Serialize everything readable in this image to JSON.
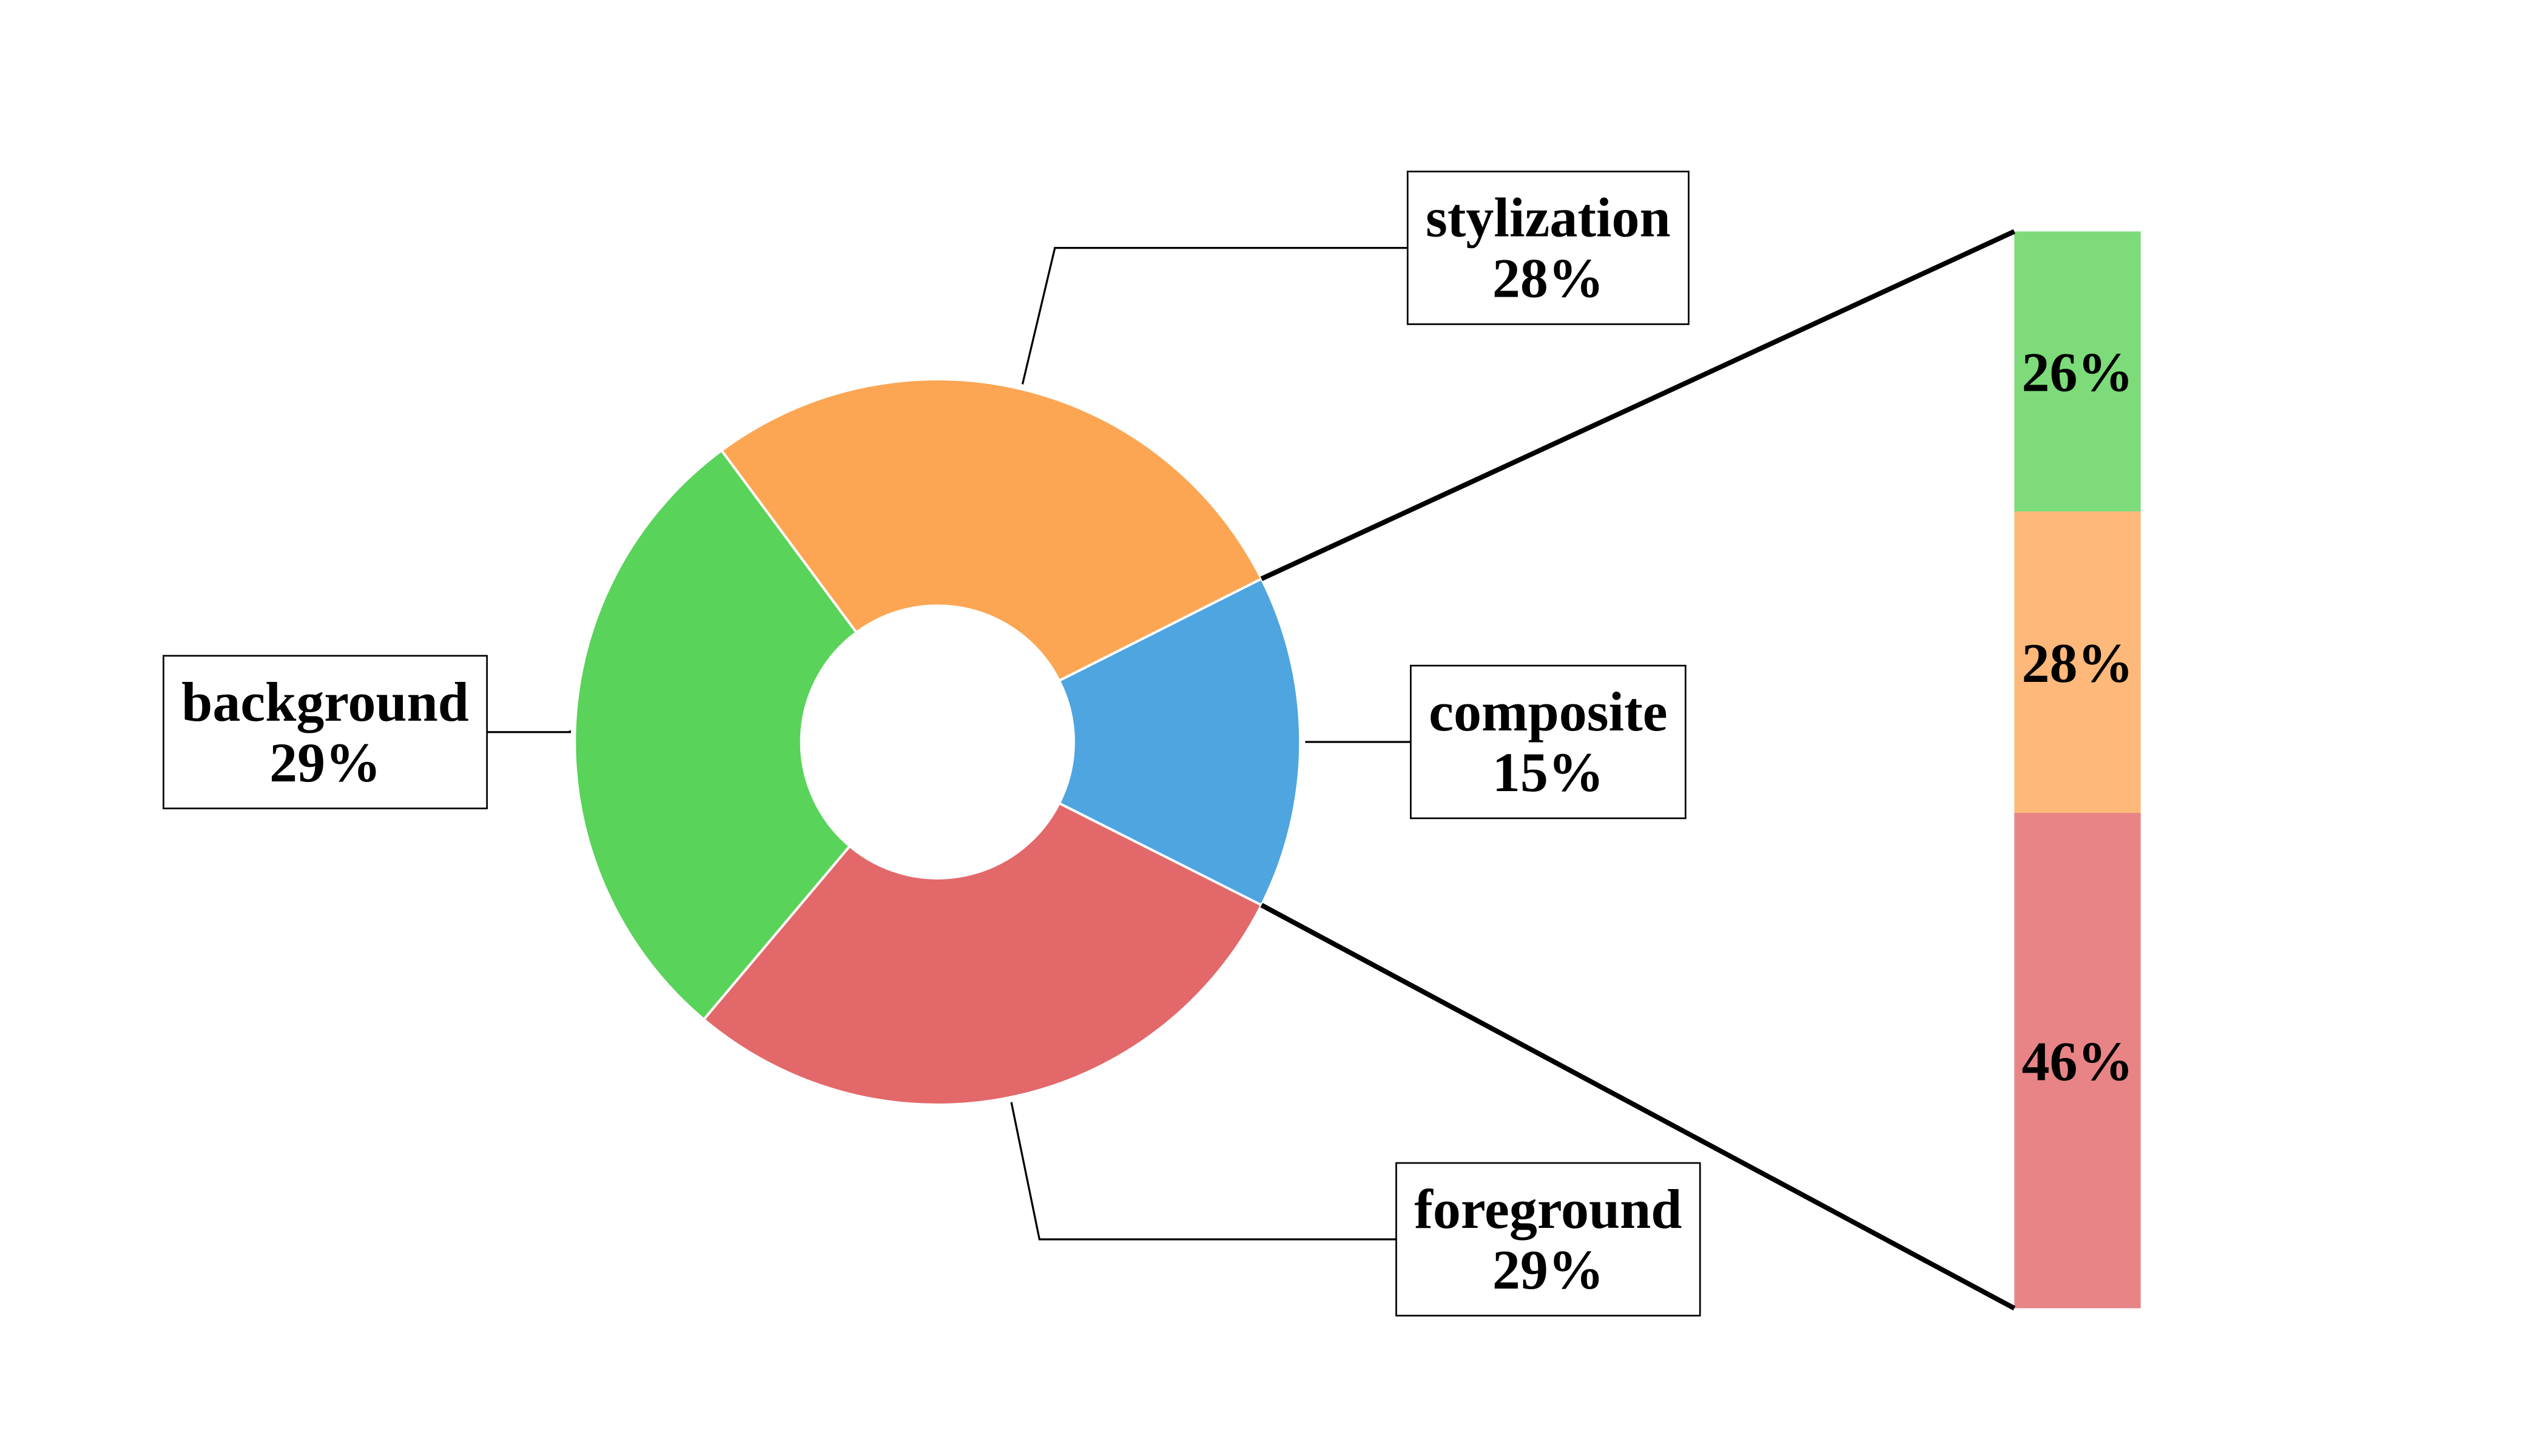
{
  "chart_data": [
    {
      "type": "donut",
      "categories": [
        "composite",
        "stylization",
        "background",
        "foreground"
      ],
      "values": [
        15,
        28,
        29,
        29
      ],
      "value_labels": [
        "15%",
        "28%",
        "29%",
        "29%"
      ],
      "colors": [
        "#4ea5e0",
        "#fca654",
        "#59d35a",
        "#e3686a"
      ]
    },
    {
      "type": "stacked-bar",
      "values": [
        26,
        28,
        46
      ],
      "value_labels": [
        "26%",
        "28%",
        "46%"
      ],
      "colors": [
        "#7ddb7a",
        "#fdb87a",
        "#e88486"
      ]
    }
  ]
}
